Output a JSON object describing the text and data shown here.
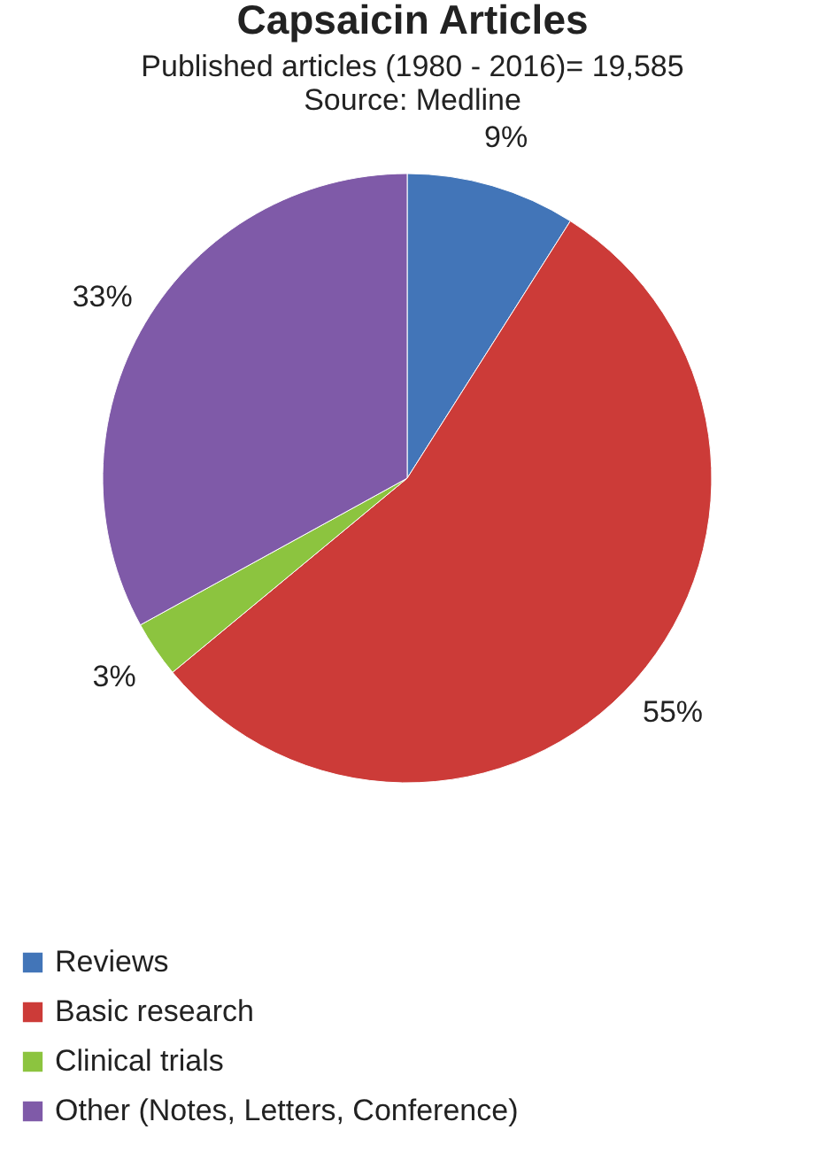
{
  "chart_data": {
    "type": "pie",
    "title": "Capsaicin Articles",
    "subtitle": "Published articles (1980 - 2016)= 19,585\nSource: Medline",
    "categories": [
      "Reviews",
      "Basic research",
      "Clinical trials",
      "Other (Notes, Letters, Conference)"
    ],
    "values": [
      9,
      55,
      3,
      33
    ],
    "colors": [
      "#4275b8",
      "#cc3b38",
      "#8cc43f",
      "#7f5aa8"
    ],
    "value_labels": [
      "9%",
      "55%",
      "3%",
      "33%"
    ],
    "legend": "bottom left"
  }
}
